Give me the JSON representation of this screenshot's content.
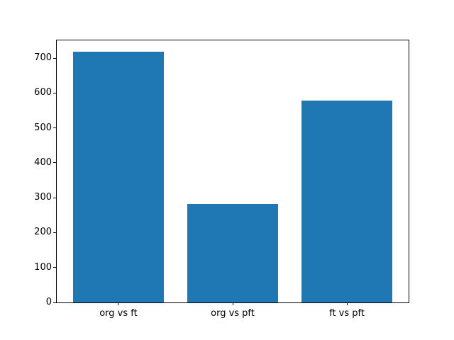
{
  "figure": {
    "background": "#ffffff",
    "spine_color": "#000000",
    "text_color": "#000000"
  },
  "chart_data": {
    "type": "bar",
    "title": "",
    "xlabel": "",
    "ylabel": "",
    "categories": [
      "org vs ft",
      "org vs pft",
      "ft vs pft"
    ],
    "values": [
      719,
      283,
      578
    ],
    "bar_color": "#1f77b4",
    "bar_width": 0.8,
    "xlim": [
      -0.54,
      2.54
    ],
    "ylim": [
      0,
      751
    ],
    "yticks": [
      0,
      100,
      200,
      300,
      400,
      500,
      600,
      700
    ],
    "grid": false,
    "legend": "none"
  }
}
